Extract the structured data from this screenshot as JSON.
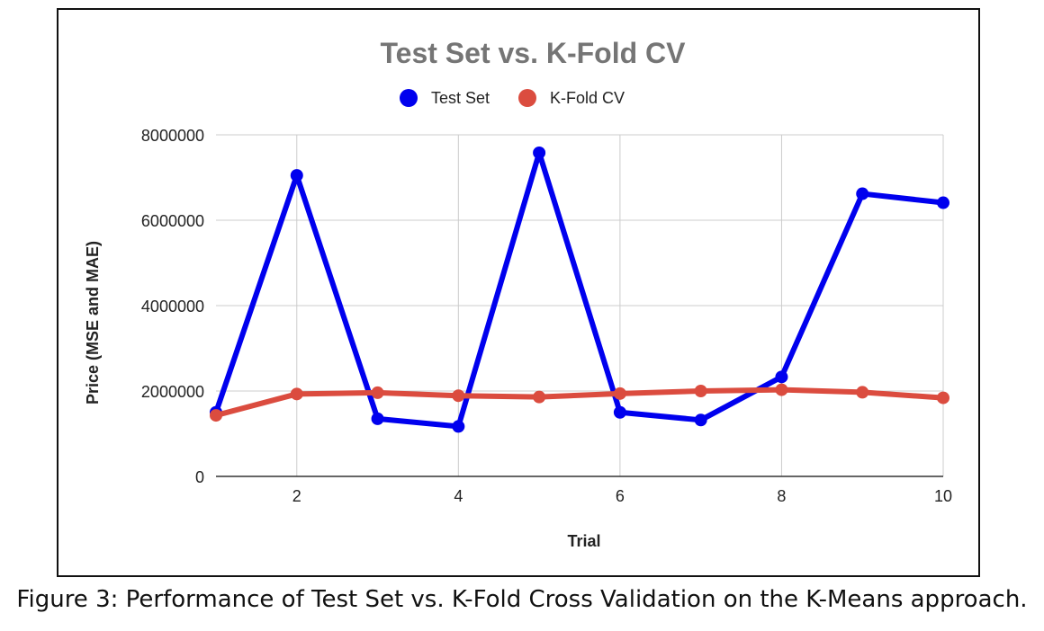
{
  "chart_data": {
    "type": "line",
    "title": "Test Set vs. K-Fold CV",
    "xlabel": "Trial",
    "ylabel": "Price (MSE and MAE)",
    "x": [
      1,
      2,
      3,
      4,
      5,
      6,
      7,
      8,
      9,
      10
    ],
    "xlim": [
      1,
      10
    ],
    "ylim": [
      0,
      8000000
    ],
    "xticks": [
      2,
      4,
      6,
      8,
      10
    ],
    "yticks": [
      0,
      2000000,
      4000000,
      6000000,
      8000000
    ],
    "grid": true,
    "legend_position": "top",
    "series": [
      {
        "name": "Test Set",
        "color": "#0000ee",
        "values": [
          1500000,
          7050000,
          1350000,
          1170000,
          7580000,
          1500000,
          1320000,
          2330000,
          6620000,
          6410000
        ]
      },
      {
        "name": "K-Fold CV",
        "color": "#db4c3f",
        "values": [
          1430000,
          1930000,
          1960000,
          1890000,
          1860000,
          1940000,
          2000000,
          2030000,
          1970000,
          1840000
        ]
      }
    ]
  },
  "caption": "Figure 3: Performance of Test Set vs. K-Fold Cross Validation on the K-Means approach."
}
